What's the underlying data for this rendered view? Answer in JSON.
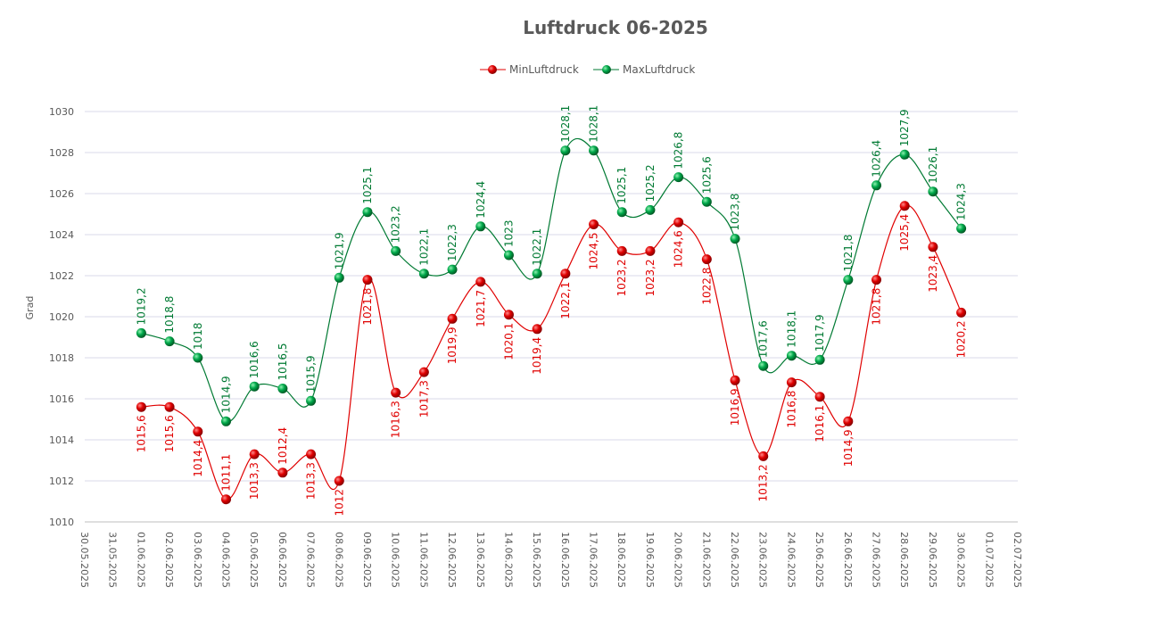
{
  "chart_data": {
    "type": "line",
    "title": "Luftdruck 06-2025",
    "xlabel": "",
    "ylabel": "Grad",
    "ylim": [
      1010,
      1030
    ],
    "yticks": [
      1010,
      1012,
      1014,
      1016,
      1018,
      1020,
      1022,
      1024,
      1026,
      1028,
      1030
    ],
    "grid": "horizontal",
    "legend_position": "top",
    "categories": [
      "30.05.2025",
      "31.05.2025",
      "01.06.2025",
      "02.06.2025",
      "03.06.2025",
      "04.06.2025",
      "05.06.2025",
      "06.06.2025",
      "07.06.2025",
      "08.06.2025",
      "09.06.2025",
      "10.06.2025",
      "11.06.2025",
      "12.06.2025",
      "13.06.2025",
      "14.06.2025",
      "15.06.2025",
      "16.06.2025",
      "17.06.2025",
      "18.06.2025",
      "19.06.2025",
      "20.06.2025",
      "21.06.2025",
      "22.06.2025",
      "23.06.2025",
      "24.06.2025",
      "25.06.2025",
      "26.06.2025",
      "27.06.2025",
      "28.06.2025",
      "29.06.2025",
      "30.06.2025",
      "01.07.2025",
      "02.07.2025"
    ],
    "series": [
      {
        "name": "MinLuftdruck",
        "color": "#e00000",
        "labelpos": "below",
        "values": [
          null,
          null,
          1015.6,
          1015.6,
          1014.4,
          1011.1,
          1013.3,
          1012.4,
          1013.3,
          1012,
          1021.8,
          1016.3,
          1017.3,
          1019.9,
          1021.7,
          1020.1,
          1019.4,
          1022.1,
          1024.5,
          1023.2,
          1023.2,
          1024.6,
          1022.8,
          1016.9,
          1013.2,
          1016.8,
          1016.1,
          1014.9,
          1021.8,
          1025.4,
          1023.4,
          1020.2,
          null,
          null
        ]
      },
      {
        "name": "MaxLuftdruck",
        "color": "#007a33",
        "labelpos": "above",
        "values": [
          null,
          null,
          1019.2,
          1018.8,
          1018,
          1014.9,
          1016.6,
          1016.5,
          1015.9,
          1021.9,
          1025.1,
          1023.2,
          1022.1,
          1022.3,
          1024.4,
          1023,
          1022.1,
          1028.1,
          1028.1,
          1025.1,
          1025.2,
          1026.8,
          1025.6,
          1023.8,
          1017.6,
          1018.1,
          1017.9,
          1021.8,
          1026.4,
          1027.9,
          1026.1,
          1024.3,
          null,
          null
        ]
      }
    ]
  }
}
